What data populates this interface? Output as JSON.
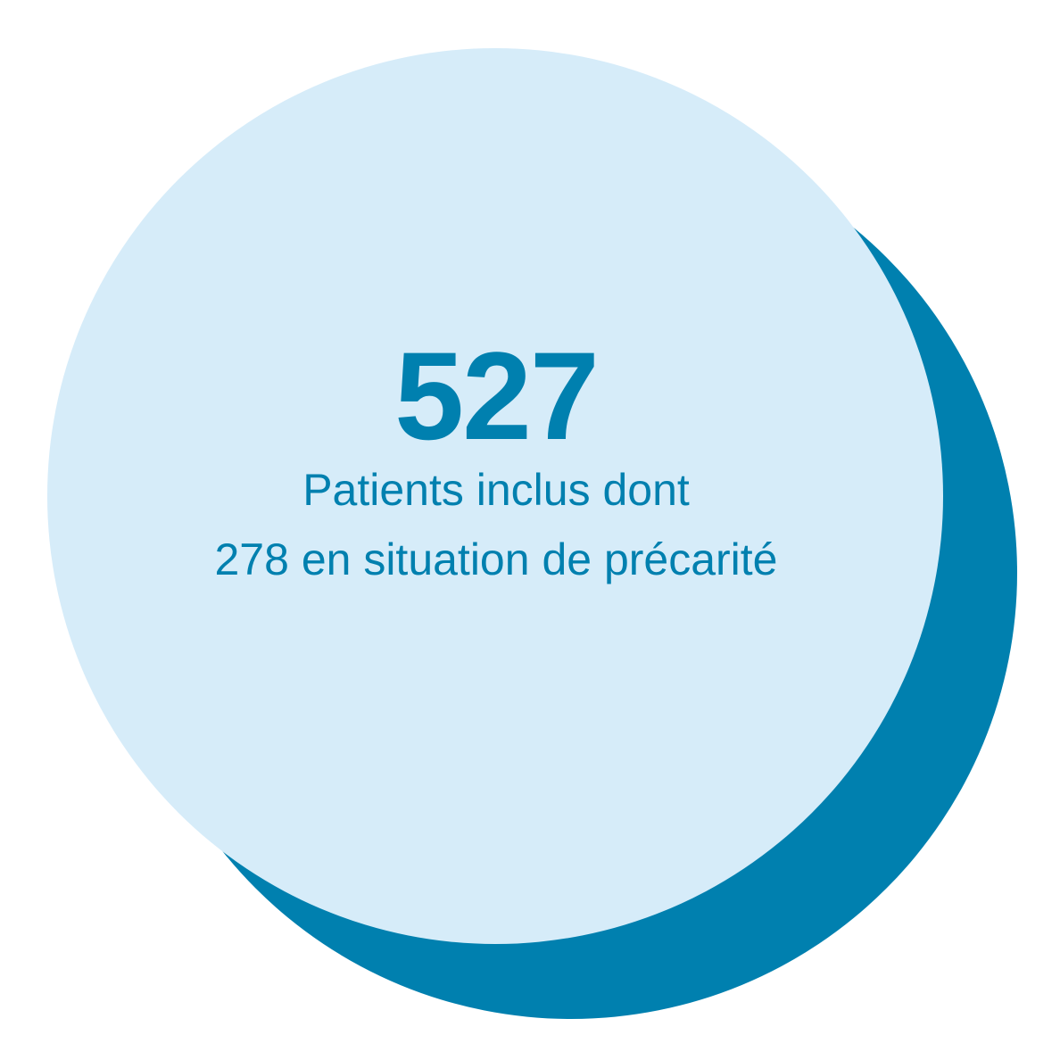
{
  "colors": {
    "background": "#ffffff",
    "back_circle": "#0080af",
    "front_circle": "#d6ecf9",
    "text": "#0080af"
  },
  "stat": {
    "number": "527",
    "line1": "Patients inclus dont",
    "line2": "278 en situation de précarité"
  }
}
